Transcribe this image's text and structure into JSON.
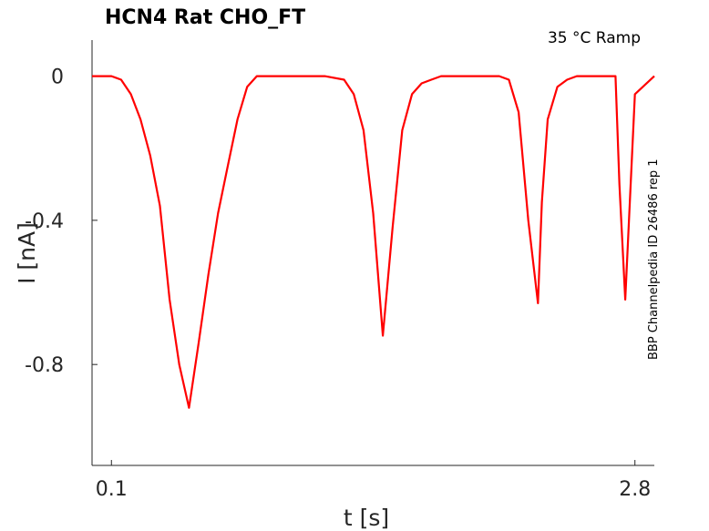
{
  "chart_data": {
    "type": "line",
    "title": "HCN4  Rat  CHO_FT",
    "condition_label": "35 °C  Ramp",
    "side_label": "BBP Channelpedia ID 26486 rep 1",
    "xlabel": "t [s]",
    "ylabel": "I [nA]",
    "xlim": [
      0.0,
      2.9
    ],
    "ylim": [
      -1.08,
      0.1
    ],
    "xticks": [
      0.1,
      2.8
    ],
    "xtick_labels": [
      "0.1",
      "2.8"
    ],
    "yticks": [
      0,
      -0.4,
      -0.8
    ],
    "ytick_labels": [
      "0",
      "-0.4",
      "-0.8"
    ],
    "grid": false,
    "color": "#ff0000",
    "series": [
      {
        "x": [
          0.0,
          0.1,
          0.15,
          0.2,
          0.25,
          0.3,
          0.35,
          0.4,
          0.45,
          0.5,
          0.55,
          0.6,
          0.65,
          0.7,
          0.75,
          0.8,
          0.85,
          0.9,
          0.95,
          1.0,
          1.1,
          1.2,
          1.3,
          1.35,
          1.4,
          1.45,
          1.5,
          1.55,
          1.6,
          1.65,
          1.7,
          1.75,
          1.8,
          1.9,
          2.0,
          2.1,
          2.15,
          2.2,
          2.25,
          2.3,
          2.32,
          2.35,
          2.4,
          2.45,
          2.5,
          2.6,
          2.65,
          2.7,
          2.72,
          2.75,
          2.8,
          2.9
        ],
        "y": [
          0.0,
          0.0,
          -0.01,
          -0.05,
          -0.12,
          -0.22,
          -0.36,
          -0.62,
          -0.8,
          -0.92,
          -0.74,
          -0.55,
          -0.38,
          -0.25,
          -0.12,
          -0.03,
          0.0,
          0.0,
          0.0,
          0.0,
          0.0,
          0.0,
          -0.01,
          -0.05,
          -0.15,
          -0.38,
          -0.72,
          -0.42,
          -0.15,
          -0.05,
          -0.02,
          -0.01,
          0.0,
          0.0,
          0.0,
          0.0,
          -0.01,
          -0.1,
          -0.4,
          -0.63,
          -0.35,
          -0.12,
          -0.03,
          -0.01,
          0.0,
          0.0,
          0.0,
          0.0,
          -0.3,
          -0.62,
          -0.05,
          0.0
        ]
      }
    ]
  }
}
